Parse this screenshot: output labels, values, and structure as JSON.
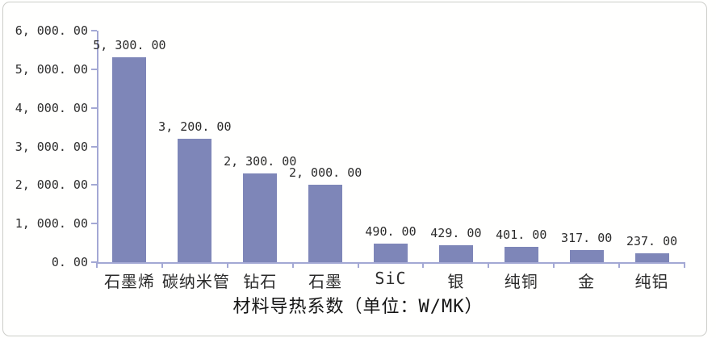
{
  "chart_data": {
    "type": "bar",
    "title": "材料导热系数（单位：W/MK）",
    "xlabel": "",
    "ylabel": "",
    "ylim": [
      0,
      6000
    ],
    "grid": false,
    "legend": "none",
    "categories": [
      "石墨烯",
      "碳纳米管",
      "钻石",
      "石墨",
      "SiC",
      "银",
      "纯铜",
      "金",
      "纯铝"
    ],
    "values": [
      5300,
      3200,
      2300,
      2000,
      490,
      429,
      401,
      317,
      237
    ],
    "value_labels": [
      "5, 300. 00",
      "3, 200. 00",
      "2, 300. 00",
      "2, 000. 00",
      "490. 00",
      "429. 00",
      "401. 00",
      "317. 00",
      "237. 00"
    ],
    "y_tick_values": [
      0,
      1000,
      2000,
      3000,
      4000,
      5000,
      6000
    ],
    "y_tick_labels": [
      "0. 00",
      "1, 000. 00",
      "2, 000. 00",
      "3, 000. 00",
      "4, 000. 00",
      "5, 000. 00",
      "6, 000. 00"
    ],
    "colors": {
      "bar": "#7e86b8",
      "axis": "#a3a8d4",
      "text": "#2b2b2b",
      "frame_border": "#cccdc9",
      "background": "#fffffe"
    }
  }
}
